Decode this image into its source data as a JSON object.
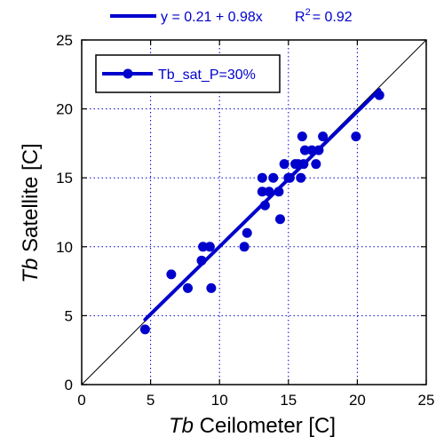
{
  "chart_data": {
    "type": "scatter",
    "fit_equation": "y = 0.21 + 0.98x",
    "r2_label": "R",
    "r2_sup": "2",
    "r2_value": "= 0.92",
    "xlabel_prefix": "Tb",
    "xlabel_suffix": " Ceilometer [C]",
    "ylabel_prefix": "Tb",
    "ylabel_suffix": " Satellite [C]",
    "xlim": [
      0,
      25
    ],
    "ylim": [
      0,
      25
    ],
    "x_ticks": [
      "0",
      "5",
      "10",
      "15",
      "20",
      "25"
    ],
    "y_ticks": [
      "0",
      "5",
      "10",
      "15",
      "20",
      "25"
    ],
    "grid": true,
    "legend_placement": "top-left",
    "series": [
      {
        "name": "Tb_sat_P=30%",
        "color": "#0000cc",
        "points": [
          [
            4.6,
            4
          ],
          [
            6.5,
            8
          ],
          [
            7.7,
            7
          ],
          [
            8.7,
            9
          ],
          [
            8.8,
            10
          ],
          [
            9.3,
            10
          ],
          [
            9.4,
            7
          ],
          [
            11.8,
            10
          ],
          [
            12.0,
            11
          ],
          [
            13.1,
            15
          ],
          [
            13.1,
            14
          ],
          [
            13.3,
            13
          ],
          [
            13.6,
            14
          ],
          [
            13.9,
            15
          ],
          [
            14.3,
            14
          ],
          [
            14.4,
            12
          ],
          [
            14.7,
            16
          ],
          [
            15.0,
            15
          ],
          [
            15.1,
            15
          ],
          [
            15.5,
            16
          ],
          [
            15.7,
            16
          ],
          [
            15.9,
            15
          ],
          [
            16.0,
            18
          ],
          [
            16.1,
            16
          ],
          [
            16.2,
            17
          ],
          [
            16.7,
            17
          ],
          [
            17.0,
            16
          ],
          [
            17.2,
            17
          ],
          [
            17.5,
            18
          ],
          [
            19.9,
            18
          ],
          [
            21.6,
            21
          ]
        ]
      }
    ],
    "fit_line": {
      "intercept": 0.21,
      "slope": 0.98,
      "x_range": [
        4.6,
        21.6
      ],
      "color": "#0000cc"
    },
    "identity_line": {
      "color": "#000000"
    }
  }
}
